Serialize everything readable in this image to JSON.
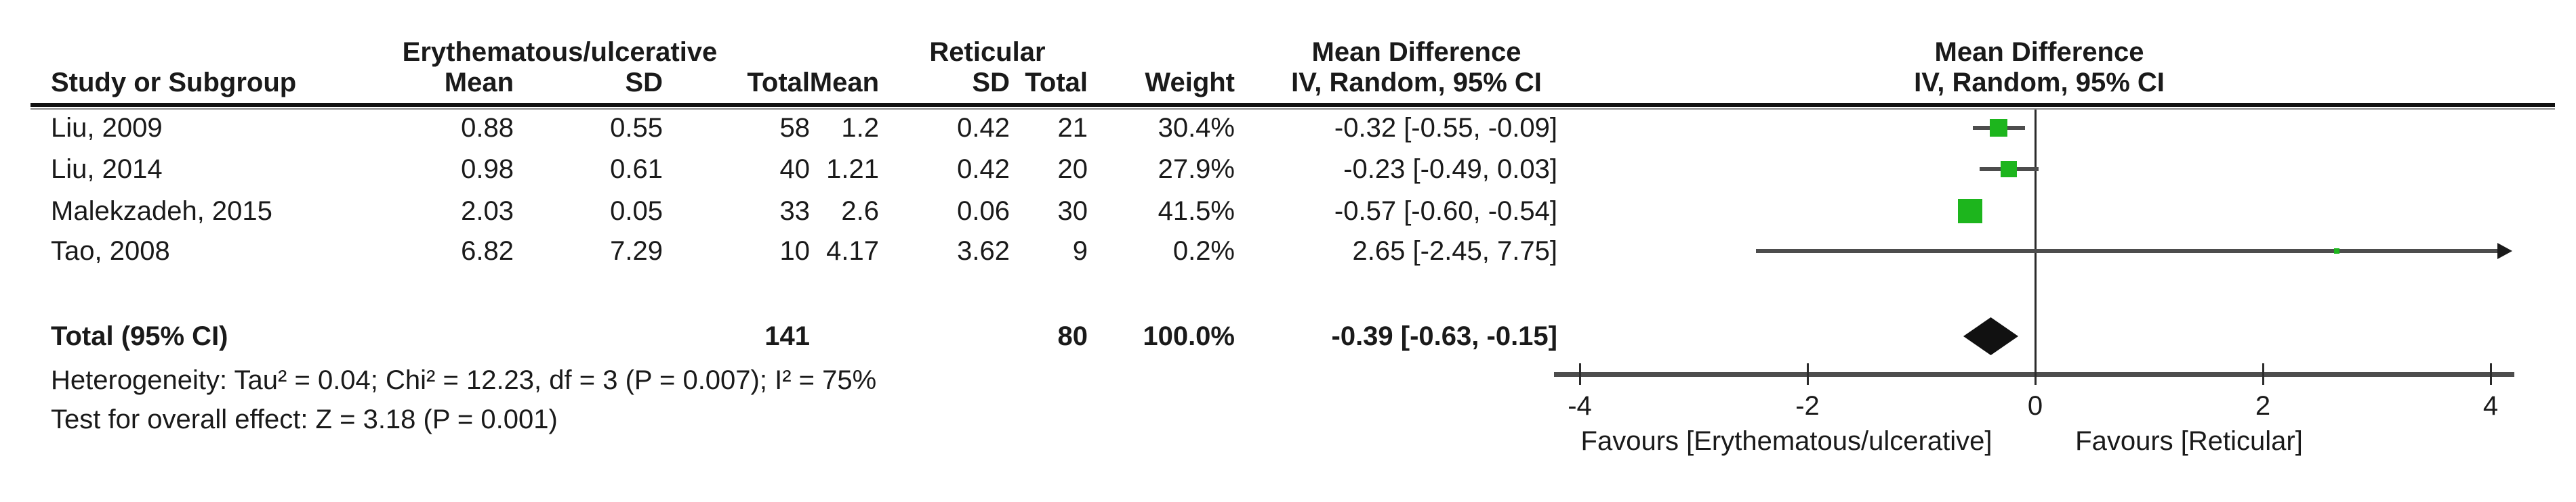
{
  "header": {
    "group1": "Erythematous/ulcerative",
    "group2": "Reticular",
    "effect_title_left": "Mean Difference",
    "effect_subtitle_left": "IV, Random, 95% CI",
    "effect_title_right": "Mean Difference",
    "effect_subtitle_right": "IV, Random, 95% CI",
    "col_study": "Study or Subgroup",
    "col_mean1": "Mean",
    "col_sd1": "SD",
    "col_total1": "Total",
    "col_mean2": "Mean",
    "col_sd2": "SD",
    "col_total2": "Total",
    "col_weight": "Weight"
  },
  "table": {
    "rows": [
      {
        "study": "Liu, 2009",
        "mean1": "0.88",
        "sd1": "0.55",
        "total1": "58",
        "mean2": "1.2",
        "sd2": "0.42",
        "total2": "21",
        "weight": "30.4%",
        "ci": "-0.32 [-0.55, -0.09]"
      },
      {
        "study": "Liu, 2014",
        "mean1": "0.98",
        "sd1": "0.61",
        "total1": "40",
        "mean2": "1.21",
        "sd2": "0.42",
        "total2": "20",
        "weight": "27.9%",
        "ci": "-0.23 [-0.49, 0.03]"
      },
      {
        "study": "Malekzadeh, 2015",
        "mean1": "2.03",
        "sd1": "0.05",
        "total1": "33",
        "mean2": "2.6",
        "sd2": "0.06",
        "total2": "30",
        "weight": "41.5%",
        "ci": "-0.57 [-0.60, -0.54]"
      },
      {
        "study": "Tao, 2008",
        "mean1": "6.82",
        "sd1": "7.29",
        "total1": "10",
        "mean2": "4.17",
        "sd2": "3.62",
        "total2": "9",
        "weight": "0.2%",
        "ci": "2.65 [-2.45, 7.75]"
      }
    ],
    "total": {
      "label": "Total (95% CI)",
      "total1": "141",
      "total2": "80",
      "weight": "100.0%",
      "ci": "-0.39 [-0.63, -0.15]"
    },
    "heterogeneity": "Heterogeneity: Tau² = 0.04; Chi² = 12.23, df = 3 (P = 0.007); I² = 75%",
    "overall_effect": "Test for overall effect: Z = 3.18 (P = 0.001)"
  },
  "axis": {
    "tick_labels": [
      "-4",
      "-2",
      "0",
      "2",
      "4"
    ],
    "favours_left": "Favours [Erythematous/ulcerative]",
    "favours_right": "Favours [Reticular]"
  },
  "chart_data": {
    "type": "forest",
    "effect_measure": "Mean Difference",
    "model": "IV, Random, 95% CI",
    "group1_label": "Erythematous/ulcerative",
    "group2_label": "Reticular",
    "studies": [
      {
        "name": "Liu, 2009",
        "g1_mean": 0.88,
        "g1_sd": 0.55,
        "g1_n": 58,
        "g2_mean": 1.2,
        "g2_sd": 0.42,
        "g2_n": 21,
        "weight_pct": 30.4,
        "md": -0.32,
        "ci_low": -0.55,
        "ci_high": -0.09
      },
      {
        "name": "Liu, 2014",
        "g1_mean": 0.98,
        "g1_sd": 0.61,
        "g1_n": 40,
        "g2_mean": 1.21,
        "g2_sd": 0.42,
        "g2_n": 20,
        "weight_pct": 27.9,
        "md": -0.23,
        "ci_low": -0.49,
        "ci_high": 0.03
      },
      {
        "name": "Malekzadeh, 2015",
        "g1_mean": 2.03,
        "g1_sd": 0.05,
        "g1_n": 33,
        "g2_mean": 2.6,
        "g2_sd": 0.06,
        "g2_n": 30,
        "weight_pct": 41.5,
        "md": -0.57,
        "ci_low": -0.6,
        "ci_high": -0.54
      },
      {
        "name": "Tao, 2008",
        "g1_mean": 6.82,
        "g1_sd": 7.29,
        "g1_n": 10,
        "g2_mean": 4.17,
        "g2_sd": 3.62,
        "g2_n": 9,
        "weight_pct": 0.2,
        "md": 2.65,
        "ci_low": -2.45,
        "ci_high": 7.75
      }
    ],
    "total": {
      "g1_n": 141,
      "g2_n": 80,
      "weight_pct": 100.0,
      "md": -0.39,
      "ci_low": -0.63,
      "ci_high": -0.15
    },
    "heterogeneity": {
      "tau2": 0.04,
      "chi2": 12.23,
      "df": 3,
      "p": 0.007,
      "i2_pct": 75
    },
    "overall_effect": {
      "z": 3.18,
      "p": 0.001
    },
    "xticks": [
      -4,
      -2,
      0,
      2,
      4
    ],
    "xlim": [
      -4.25,
      4.25
    ],
    "colors": {
      "study_marker": "#1db51d",
      "ci_line": "#4d4d4d",
      "diamond": "#111111",
      "axis": "#4d4d4d"
    }
  }
}
